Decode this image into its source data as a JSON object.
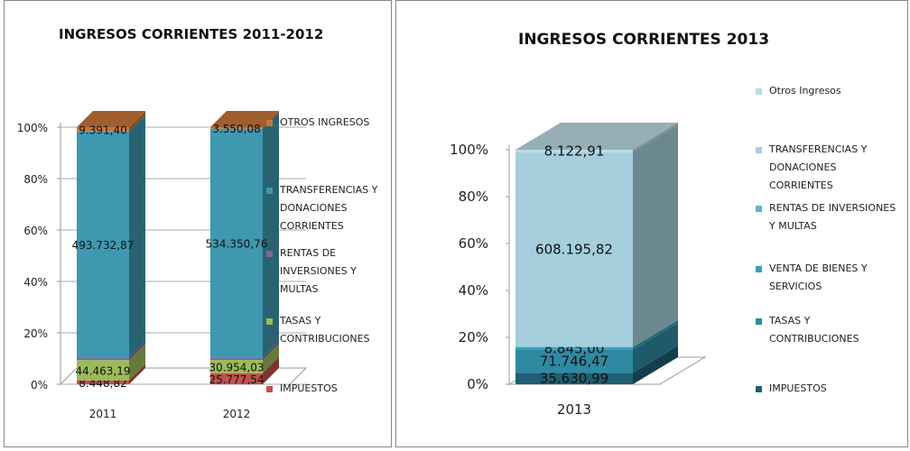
{
  "chart_data": [
    {
      "type": "bar",
      "stack": "percent",
      "title": "INGRESOS CORRIENTES 2011-2012",
      "categories": [
        "2011",
        "2012"
      ],
      "ylim": [
        0,
        100
      ],
      "yticks": [
        {
          "value": 0,
          "label": "0%"
        },
        {
          "value": 20,
          "label": "20%"
        },
        {
          "value": 40,
          "label": "40%"
        },
        {
          "value": 60,
          "label": "60%"
        },
        {
          "value": 80,
          "label": "80%"
        },
        {
          "value": 100,
          "label": "100%"
        }
      ],
      "grid": true,
      "legend": "right",
      "series": [
        {
          "name": "IMPUESTOS",
          "color": "#c0504d",
          "values": [
            8448.82,
            25777.54
          ],
          "value_labels": [
            "8.448,82",
            "25.777,54"
          ]
        },
        {
          "name": "TASAS Y CONTRIBUCIONES",
          "color": "#9bbb59",
          "values": [
            44463.19,
            30954.03
          ],
          "value_labels": [
            "44.463,19",
            "30.954,03"
          ]
        },
        {
          "name": "RENTAS DE INVERSIONES Y MULTAS",
          "color": "#8064a2",
          "values": [
            5600,
            5000
          ]
        },
        {
          "name": "TRANSFERENCIAS Y DONACIONES CORRIENTES",
          "color": "#3f98b0",
          "values": [
            493732.87,
            534350.76
          ],
          "value_labels": [
            "493.732,87",
            "534.350,76"
          ]
        },
        {
          "name": "OTROS INGRESOS",
          "color": "#c8763a",
          "values": [
            9391.4,
            3550.08
          ],
          "value_labels": [
            "9.391,40",
            "3.550,08"
          ]
        }
      ]
    },
    {
      "type": "bar",
      "stack": "percent",
      "title": "INGRESOS CORRIENTES 2013",
      "categories": [
        "2013"
      ],
      "ylim": [
        0,
        100
      ],
      "yticks": [
        {
          "value": 0,
          "label": "0%"
        },
        {
          "value": 20,
          "label": "20%"
        },
        {
          "value": 40,
          "label": "40%"
        },
        {
          "value": 60,
          "label": "60%"
        },
        {
          "value": 80,
          "label": "80%"
        },
        {
          "value": 100,
          "label": "100%"
        }
      ],
      "grid": false,
      "legend": "right",
      "series": [
        {
          "name": "IMPUESTOS",
          "color": "#1f5f73",
          "values": [
            35630.99
          ],
          "value_labels": [
            "35.630,99"
          ]
        },
        {
          "name": "TASAS Y CONTRIBUCIONES",
          "color": "#2e8aa3",
          "values": [
            71746.47
          ],
          "value_labels": [
            "71.746,47"
          ]
        },
        {
          "name": "VENTA DE BIENES Y SERVICIOS",
          "color": "#3aa0bd",
          "values": [
            8845.0
          ],
          "value_labels": [
            "8.845,00"
          ]
        },
        {
          "name": "RENTAS DE INVERSIONES Y MULTAS",
          "color": "#62b3cc",
          "values": [
            1500
          ]
        },
        {
          "name": "TRANSFERENCIAS Y DONACIONES CORRIENTES",
          "color": "#a5cfdc",
          "values": [
            608195.82
          ],
          "value_labels": [
            "608.195,82"
          ]
        },
        {
          "name": "Otros Ingresos",
          "color": "#bcd9e4",
          "values": [
            8122.91
          ],
          "value_labels": [
            "8.122,91"
          ]
        }
      ]
    }
  ]
}
